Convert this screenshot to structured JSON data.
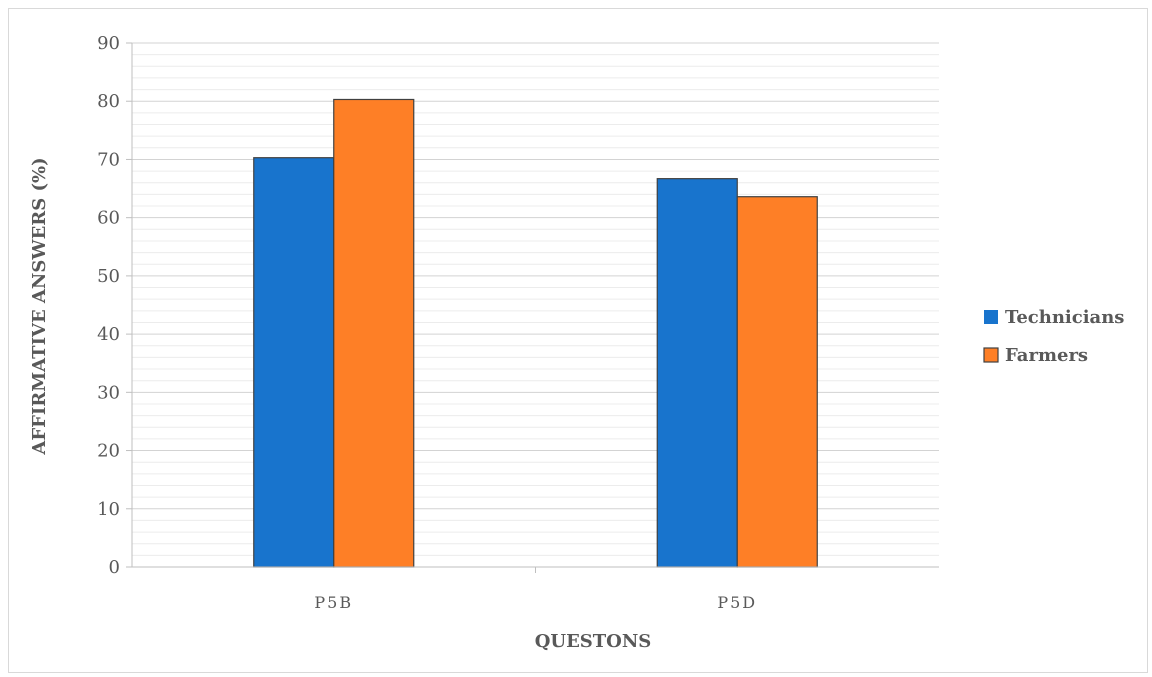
{
  "chart_data": {
    "type": "bar",
    "categories": [
      "P5B",
      "P5D"
    ],
    "series": [
      {
        "name": "Technicians",
        "values": [
          70.3,
          66.7
        ],
        "color": "#1874cd"
      },
      {
        "name": "Farmers",
        "values": [
          80.3,
          63.6
        ],
        "color": "#fe7f26"
      }
    ],
    "xlabel": "QUESTONS",
    "ylabel": "AFFIRMATIVE ANSWERS (%)",
    "ylim": [
      0,
      90
    ],
    "yticks": [
      "0",
      "10",
      "20",
      "30",
      "40",
      "50",
      "60",
      "70",
      "80",
      "90"
    ],
    "grid": true,
    "minor_grid": true,
    "legend_position": "right"
  }
}
